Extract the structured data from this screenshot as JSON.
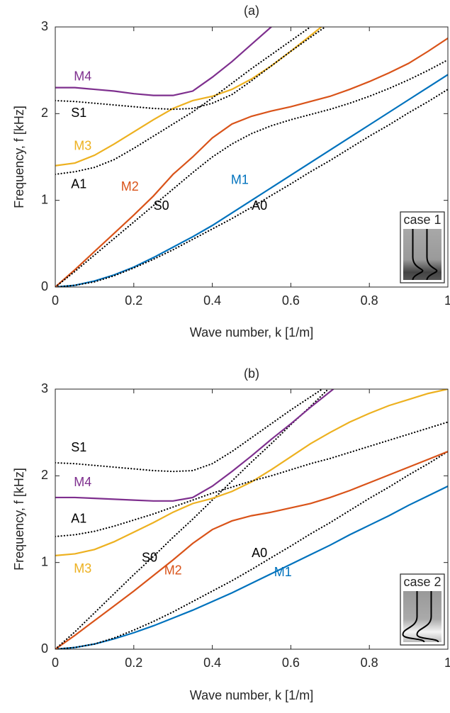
{
  "chart_data": [
    {
      "type": "line",
      "title": "(a)",
      "x_label": "Wave number, k [1/m]",
      "y_label": "Frequency, f [kHz]",
      "inset_label": "case 1",
      "xlim": [
        0,
        1
      ],
      "ylim": [
        0,
        3
      ],
      "xticks": [
        0,
        0.2,
        0.4,
        0.6,
        0.8,
        1
      ],
      "yticks": [
        0,
        1,
        2,
        3
      ],
      "grid": false,
      "x": [
        0,
        0.05,
        0.1,
        0.15,
        0.2,
        0.25,
        0.3,
        0.35,
        0.4,
        0.45,
        0.5,
        0.55,
        0.6,
        0.65,
        0.7,
        0.75,
        0.8,
        0.85,
        0.9,
        0.95,
        1
      ],
      "series": [
        {
          "name": "M1",
          "color": "#0072bd",
          "linestyle": "solid",
          "values": [
            0,
            0.02,
            0.07,
            0.14,
            0.23,
            0.34,
            0.46,
            0.58,
            0.71,
            0.855,
            1.0,
            1.145,
            1.29,
            1.435,
            1.58,
            1.725,
            1.87,
            2.015,
            2.16,
            2.305,
            2.45
          ]
        },
        {
          "name": "A0",
          "color": "#000000",
          "linestyle": "dotted",
          "values": [
            0,
            0.02,
            0.06,
            0.13,
            0.22,
            0.32,
            0.43,
            0.55,
            0.67,
            0.79,
            0.92,
            1.056,
            1.19,
            1.33,
            1.46,
            1.6,
            1.74,
            1.87,
            2.01,
            2.14,
            2.28
          ]
        },
        {
          "name": "M2",
          "color": "#d95319",
          "linestyle": "solid",
          "values": [
            0,
            0.2,
            0.41,
            0.62,
            0.83,
            1.05,
            1.3,
            1.5,
            1.72,
            1.88,
            1.97,
            2.03,
            2.08,
            2.14,
            2.2,
            2.28,
            2.37,
            2.47,
            2.58,
            2.72,
            2.87
          ]
        },
        {
          "name": "S0",
          "color": "#000000",
          "linestyle": "dotted",
          "values": [
            0,
            0.18,
            0.37,
            0.56,
            0.75,
            0.94,
            1.13,
            1.32,
            1.5,
            1.65,
            1.77,
            1.86,
            1.93,
            1.99,
            2.05,
            2.12,
            2.2,
            2.29,
            2.39,
            2.5,
            2.62
          ]
        },
        {
          "name": "M3",
          "color": "#edb120",
          "linestyle": "solid",
          "values": [
            1.4,
            1.43,
            1.52,
            1.65,
            1.79,
            1.93,
            2.06,
            2.15,
            2.2,
            2.28,
            2.4,
            2.55,
            2.72,
            2.9,
            3.08,
            null,
            null,
            null,
            null,
            null,
            null
          ]
        },
        {
          "name": "A1",
          "color": "#000000",
          "linestyle": "dotted",
          "values": [
            1.3,
            1.33,
            1.38,
            1.47,
            1.6,
            1.74,
            1.88,
            2.02,
            2.18,
            2.35,
            2.52,
            2.68,
            2.84,
            3.0,
            3.15,
            null,
            null,
            null,
            null,
            null,
            null
          ]
        },
        {
          "name": "M4",
          "color": "#7e2f8e",
          "linestyle": "solid",
          "values": [
            2.3,
            2.3,
            2.28,
            2.26,
            2.23,
            2.21,
            2.21,
            2.26,
            2.42,
            2.6,
            2.8,
            3.0,
            3.2,
            null,
            null,
            null,
            null,
            null,
            null,
            null,
            null
          ]
        },
        {
          "name": "S1",
          "color": "#000000",
          "linestyle": "dotted",
          "values": [
            2.15,
            2.14,
            2.12,
            2.1,
            2.08,
            2.06,
            2.05,
            2.06,
            2.12,
            2.22,
            2.38,
            2.55,
            2.72,
            2.88,
            3.04,
            null,
            null,
            null,
            null,
            null,
            null
          ]
        }
      ]
    },
    {
      "type": "line",
      "title": "(b)",
      "x_label": "Wave number, k [1/m]",
      "y_label": "Frequency, f [kHz]",
      "inset_label": "case 2",
      "xlim": [
        0,
        1
      ],
      "ylim": [
        0,
        3
      ],
      "xticks": [
        0,
        0.2,
        0.4,
        0.6,
        0.8,
        1
      ],
      "yticks": [
        0,
        1,
        2,
        3
      ],
      "grid": false,
      "x": [
        0,
        0.05,
        0.1,
        0.15,
        0.2,
        0.25,
        0.3,
        0.35,
        0.4,
        0.45,
        0.5,
        0.55,
        0.6,
        0.65,
        0.7,
        0.75,
        0.8,
        0.85,
        0.9,
        0.95,
        1
      ],
      "series": [
        {
          "name": "M1",
          "color": "#0072bd",
          "linestyle": "solid",
          "values": [
            0,
            0.02,
            0.06,
            0.12,
            0.19,
            0.27,
            0.36,
            0.45,
            0.55,
            0.65,
            0.76,
            0.87,
            0.98,
            1.09,
            1.2,
            1.32,
            1.43,
            1.54,
            1.66,
            1.77,
            1.88
          ]
        },
        {
          "name": "A0",
          "color": "#000000",
          "linestyle": "dotted",
          "values": [
            0,
            0.02,
            0.06,
            0.13,
            0.22,
            0.32,
            0.43,
            0.55,
            0.67,
            0.79,
            0.92,
            1.056,
            1.19,
            1.33,
            1.46,
            1.6,
            1.74,
            1.87,
            2.01,
            2.14,
            2.28
          ]
        },
        {
          "name": "M2",
          "color": "#d95319",
          "linestyle": "solid",
          "values": [
            0,
            0.16,
            0.33,
            0.5,
            0.67,
            0.85,
            1.03,
            1.22,
            1.38,
            1.48,
            1.54,
            1.58,
            1.63,
            1.68,
            1.75,
            1.83,
            1.92,
            2.01,
            2.1,
            2.19,
            2.28
          ]
        },
        {
          "name": "S0",
          "color": "#000000",
          "linestyle": "dotted",
          "values": [
            0,
            0.2,
            0.42,
            0.64,
            0.86,
            1.07,
            1.29,
            1.5,
            1.72,
            1.94,
            2.16,
            2.37,
            2.59,
            2.8,
            3.02,
            null,
            null,
            null,
            null,
            null,
            null
          ]
        },
        {
          "name": "M3",
          "color": "#edb120",
          "linestyle": "solid",
          "values": [
            1.08,
            1.1,
            1.15,
            1.24,
            1.35,
            1.46,
            1.58,
            1.68,
            1.74,
            1.82,
            1.93,
            2.07,
            2.22,
            2.37,
            2.5,
            2.62,
            2.72,
            2.81,
            2.88,
            2.95,
            3.0
          ]
        },
        {
          "name": "A1",
          "color": "#000000",
          "linestyle": "dotted",
          "values": [
            1.3,
            1.32,
            1.36,
            1.42,
            1.49,
            1.56,
            1.64,
            1.72,
            1.8,
            1.87,
            1.94,
            2.0,
            2.07,
            2.14,
            2.2,
            2.27,
            2.34,
            2.41,
            2.48,
            2.55,
            2.62
          ]
        },
        {
          "name": "M4",
          "color": "#7e2f8e",
          "linestyle": "solid",
          "values": [
            1.75,
            1.75,
            1.74,
            1.73,
            1.72,
            1.71,
            1.71,
            1.75,
            1.88,
            2.05,
            2.23,
            2.42,
            2.6,
            2.79,
            2.97,
            3.15,
            null,
            null,
            null,
            null,
            null
          ]
        },
        {
          "name": "S1",
          "color": "#000000",
          "linestyle": "dotted",
          "values": [
            2.15,
            2.14,
            2.12,
            2.1,
            2.08,
            2.06,
            2.05,
            2.06,
            2.14,
            2.28,
            2.44,
            2.6,
            2.76,
            2.91,
            3.06,
            null,
            null,
            null,
            null,
            null,
            null
          ]
        }
      ]
    }
  ]
}
